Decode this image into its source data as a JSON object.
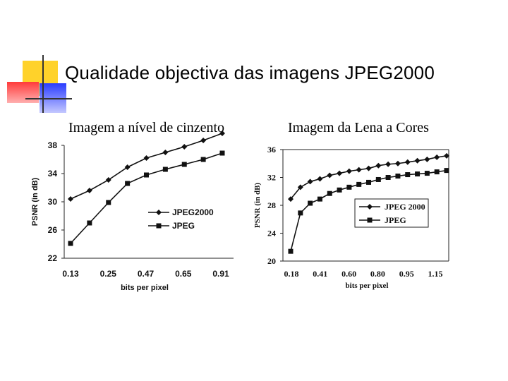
{
  "slide": {
    "title": "Qualidade objectiva das imagens JPEG2000",
    "subtitle_left": "Imagem a nível de cinzento",
    "subtitle_right": "Imagem da Lena a Cores",
    "decor_colors": {
      "yellow": "#ffd22a",
      "red": "#ff4a4a",
      "blue": "#3a4cff",
      "line": "#333333"
    }
  },
  "chart_data": [
    {
      "type": "line",
      "title": "",
      "xlabel": "bits per pixel",
      "ylabel": "PSNR (in dB)",
      "categories": [
        "0.13",
        "",
        "0.25",
        "",
        "0.47",
        "",
        "0.65",
        "",
        "0.91"
      ],
      "x_tick_labels": [
        "0.13",
        "0.25",
        "0.47",
        "0.65",
        "0.91"
      ],
      "y_ticks": [
        "22",
        "26",
        "30",
        "34",
        "38"
      ],
      "ylim": [
        22,
        38
      ],
      "legend_position": "bottom-right inside plot",
      "series": [
        {
          "name": "JPEG2000",
          "marker": "diamond",
          "values": [
            30.4,
            31.6,
            33.1,
            34.9,
            36.2,
            37.0,
            37.8,
            38.7,
            39.7
          ]
        },
        {
          "name": "JPEG",
          "marker": "square",
          "values": [
            24.1,
            27.0,
            29.9,
            32.6,
            33.8,
            34.6,
            35.3,
            36.0,
            36.9
          ]
        }
      ]
    },
    {
      "type": "line",
      "title": "",
      "xlabel": "bits per pixel",
      "ylabel": "PSNR (in dB)",
      "x_tick_labels": [
        "0.18",
        "0.41",
        "0.60",
        "0.80",
        "0.95",
        "1.15"
      ],
      "y_ticks": [
        "20",
        "24",
        "28",
        "32",
        "36"
      ],
      "ylim": [
        20,
        36
      ],
      "legend_position": "right-center inside plot",
      "series": [
        {
          "name": "JPEG 2000",
          "marker": "diamond",
          "values": [
            28.9,
            30.6,
            31.4,
            31.8,
            32.3,
            32.6,
            32.9,
            33.1,
            33.3,
            33.7,
            33.9,
            34.0,
            34.2,
            34.4,
            34.6,
            34.9,
            35.1
          ]
        },
        {
          "name": "JPEG",
          "marker": "square",
          "values": [
            21.4,
            26.9,
            28.3,
            28.9,
            29.7,
            30.2,
            30.6,
            31.0,
            31.3,
            31.7,
            32.0,
            32.2,
            32.4,
            32.5,
            32.6,
            32.8,
            33.0
          ]
        }
      ]
    }
  ]
}
